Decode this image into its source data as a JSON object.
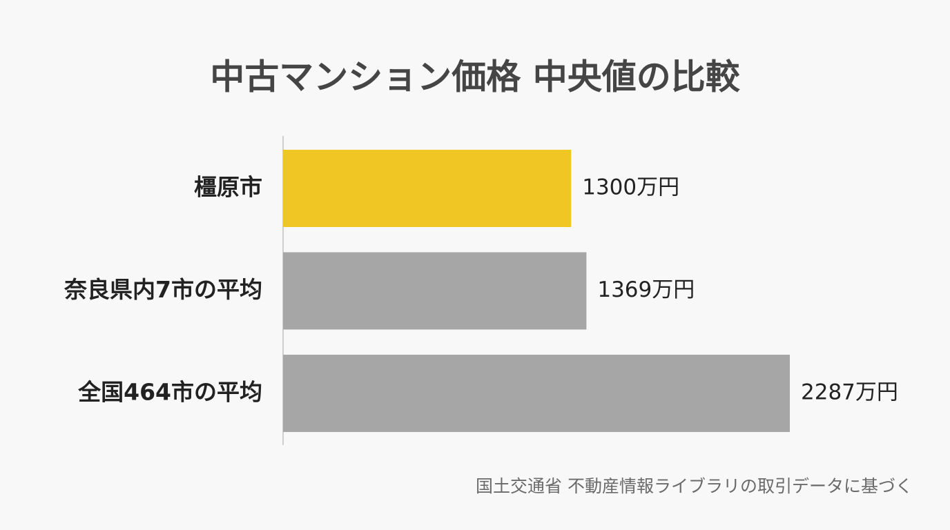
{
  "chart_data": {
    "type": "bar",
    "orientation": "horizontal",
    "title": "中古マンション価格 中央値の比較",
    "categories": [
      "橿原市",
      "奈良県内7市の平均",
      "全国464市の平均"
    ],
    "values": [
      1300,
      1369,
      2287
    ],
    "value_labels": [
      "1300万円",
      "1369万円",
      "2287万円"
    ],
    "colors": [
      "#f0c624",
      "#a6a6a6",
      "#a6a6a6"
    ],
    "source": "国土交通省 不動産情報ライブラリの取引データに基づく"
  }
}
